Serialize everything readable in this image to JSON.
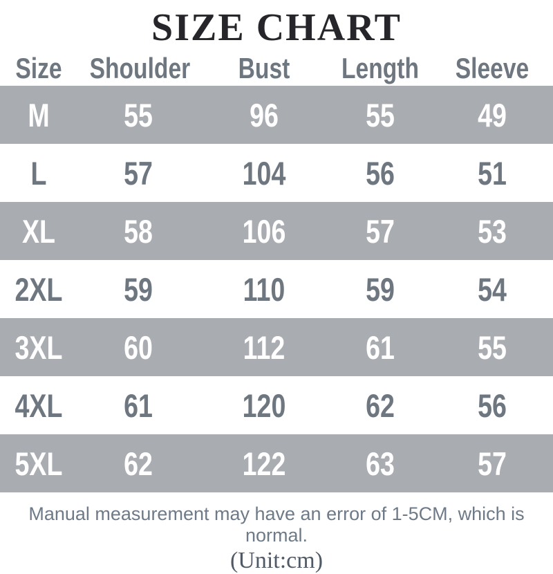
{
  "chart_data": {
    "type": "table",
    "title": "SIZE CHART",
    "columns": [
      "Size",
      "Shoulder",
      "Bust",
      "Length",
      "Sleeve"
    ],
    "rows": [
      [
        "M",
        "55",
        "96",
        "55",
        "49"
      ],
      [
        "L",
        "57",
        "104",
        "56",
        "51"
      ],
      [
        "XL",
        "58",
        "106",
        "57",
        "53"
      ],
      [
        "2XL",
        "59",
        "110",
        "59",
        "54"
      ],
      [
        "3XL",
        "60",
        "112",
        "61",
        "55"
      ],
      [
        "4XL",
        "61",
        "120",
        "62",
        "56"
      ],
      [
        "5XL",
        "62",
        "122",
        "63",
        "57"
      ]
    ],
    "unit": "cm",
    "note": "Manual measurement may have an error of 1-5CM, which is normal."
  },
  "footer": {
    "note": "Manual measurement may have an error of 1-5CM, which is normal.",
    "unit_label": "(Unit:cm)"
  },
  "colors": {
    "shaded_row_bg": "#a9acb1",
    "slate_text": "#6e7780",
    "white_text": "#ffffff",
    "title_text": "#26262a"
  }
}
